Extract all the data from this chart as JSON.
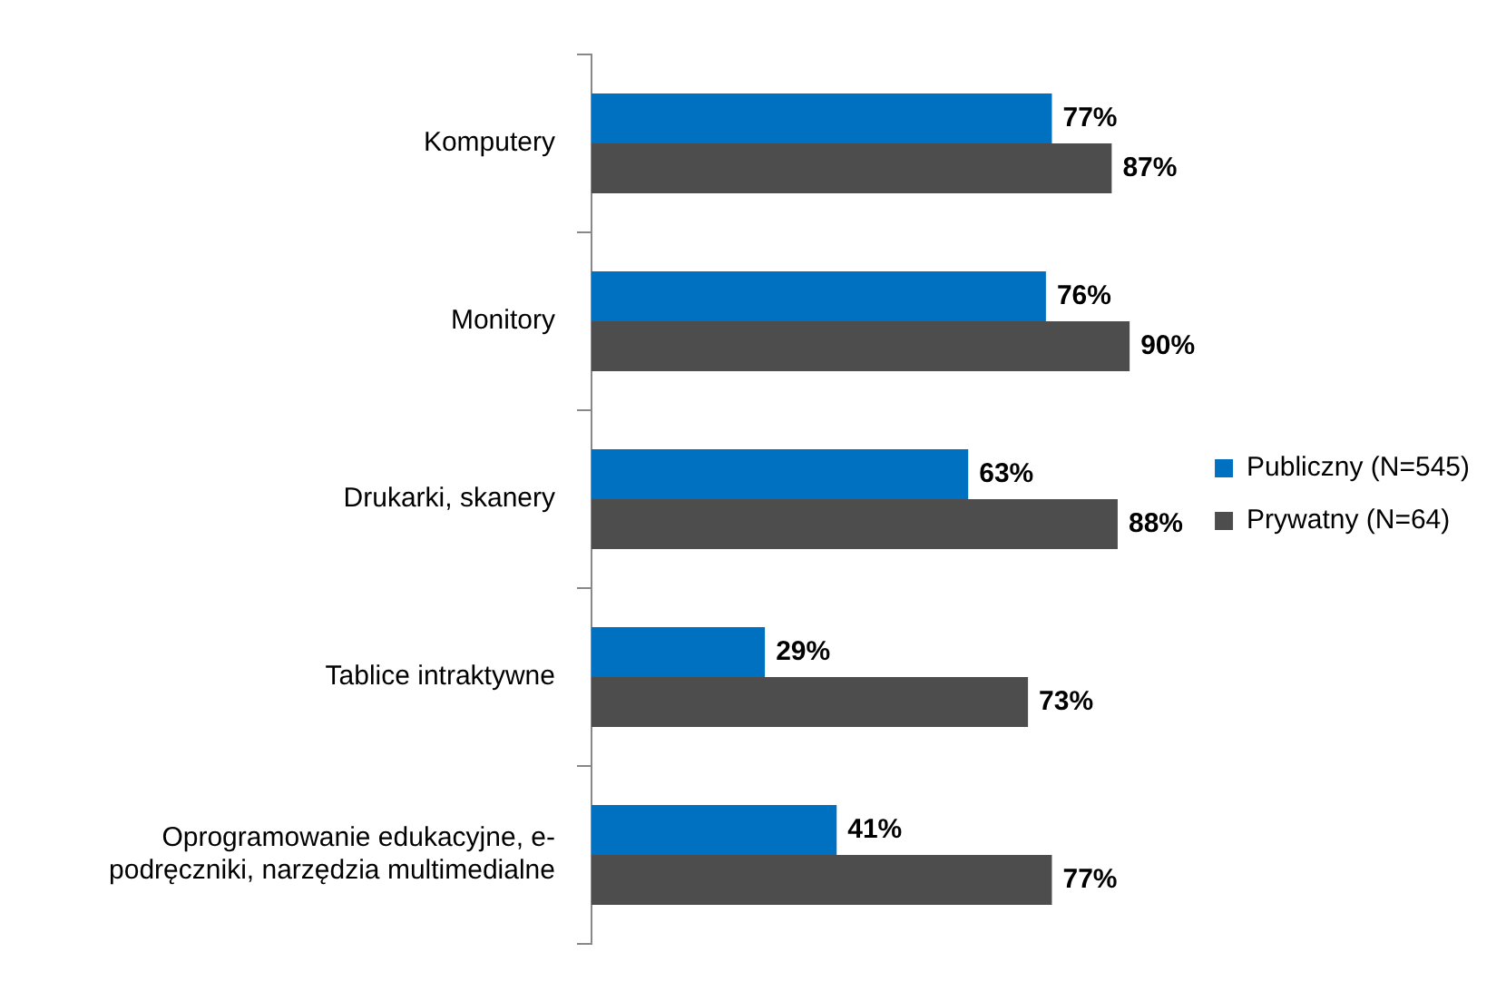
{
  "chart_data": {
    "type": "bar",
    "orientation": "horizontal",
    "categories": [
      "Komputery",
      "Monitory",
      "Drukarki, skanery",
      "Tablice intraktywne",
      "Oprogramowanie edukacyjne, e-podręczniki, narzędzia multimedialne"
    ],
    "series": [
      {
        "name": "Publiczny (N=545)",
        "color": "#0070c0",
        "values": [
          77,
          76,
          63,
          29,
          41
        ],
        "value_labels": [
          "77%",
          "76%",
          "63%",
          "29%",
          "41%"
        ]
      },
      {
        "name": "Prywatny (N=64)",
        "color": "#4d4d4d",
        "values": [
          87,
          90,
          88,
          73,
          77
        ],
        "value_labels": [
          "87%",
          "90%",
          "88%",
          "73%",
          "77%"
        ]
      }
    ],
    "legend": "right",
    "grid": false,
    "tick_labels": "y"
  }
}
